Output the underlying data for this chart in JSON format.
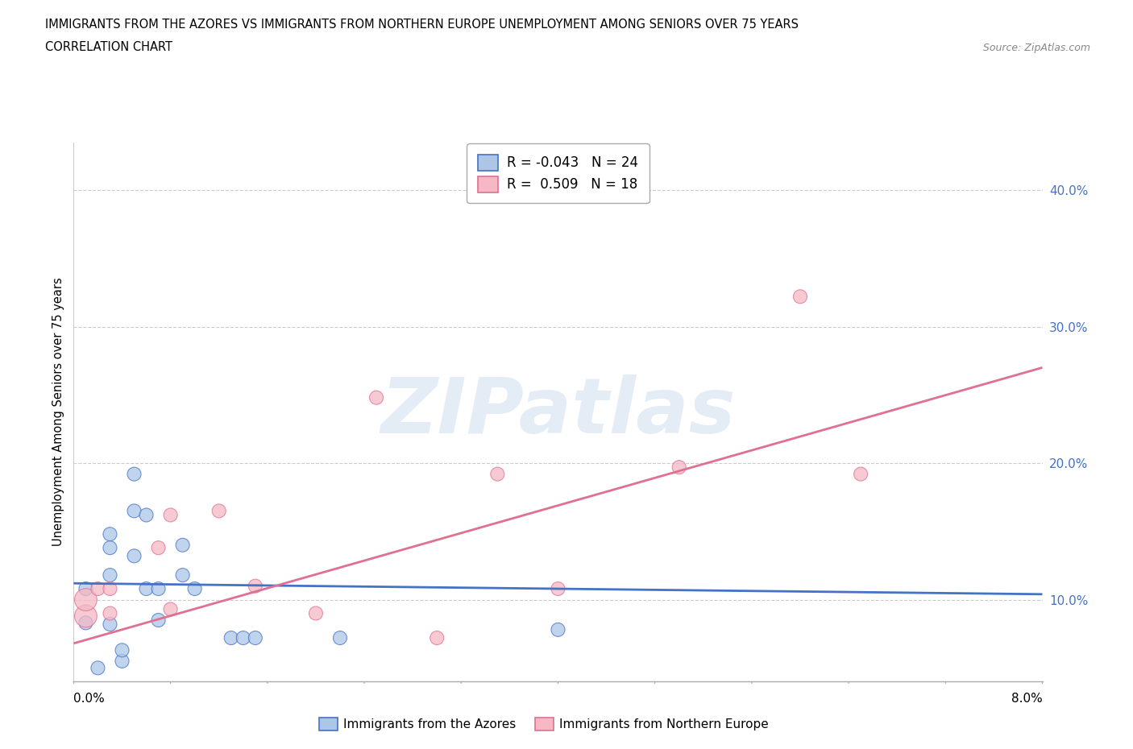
{
  "title_line1": "IMMIGRANTS FROM THE AZORES VS IMMIGRANTS FROM NORTHERN EUROPE UNEMPLOYMENT AMONG SENIORS OVER 75 YEARS",
  "title_line2": "CORRELATION CHART",
  "source": "Source: ZipAtlas.com",
  "ylabel": "Unemployment Among Seniors over 75 years",
  "y_ticks": [
    0.1,
    0.2,
    0.3,
    0.4
  ],
  "y_tick_labels": [
    "10.0%",
    "20.0%",
    "30.0%",
    "40.0%"
  ],
  "x_lim": [
    0.0,
    0.08
  ],
  "y_lim": [
    0.04,
    0.435
  ],
  "legend_r1": "R = -0.043",
  "legend_n1": "N = 24",
  "legend_r2": "R =  0.509",
  "legend_n2": "N = 18",
  "color_blue_fill": "#adc6e8",
  "color_blue_edge": "#4472c4",
  "color_pink_fill": "#f5b8c4",
  "color_pink_edge": "#e07090",
  "watermark_text": "ZIPatlas",
  "blue_points_x": [
    0.001,
    0.001,
    0.002,
    0.003,
    0.003,
    0.003,
    0.003,
    0.004,
    0.004,
    0.005,
    0.005,
    0.005,
    0.006,
    0.006,
    0.007,
    0.007,
    0.009,
    0.009,
    0.01,
    0.013,
    0.014,
    0.015,
    0.022,
    0.04
  ],
  "blue_points_y": [
    0.083,
    0.108,
    0.05,
    0.082,
    0.148,
    0.118,
    0.138,
    0.055,
    0.063,
    0.192,
    0.165,
    0.132,
    0.108,
    0.162,
    0.108,
    0.085,
    0.118,
    0.14,
    0.108,
    0.072,
    0.072,
    0.072,
    0.072,
    0.078
  ],
  "blue_points_size": [
    150,
    150,
    150,
    150,
    150,
    150,
    150,
    150,
    150,
    150,
    150,
    150,
    150,
    150,
    150,
    150,
    150,
    150,
    150,
    150,
    150,
    150,
    150,
    150
  ],
  "pink_points_x": [
    0.001,
    0.001,
    0.002,
    0.003,
    0.003,
    0.007,
    0.008,
    0.008,
    0.012,
    0.015,
    0.02,
    0.025,
    0.03,
    0.035,
    0.04,
    0.05,
    0.06,
    0.065
  ],
  "pink_points_y": [
    0.088,
    0.1,
    0.108,
    0.09,
    0.108,
    0.138,
    0.162,
    0.093,
    0.165,
    0.11,
    0.09,
    0.248,
    0.072,
    0.192,
    0.108,
    0.197,
    0.322,
    0.192
  ],
  "pink_points_size": [
    400,
    400,
    150,
    150,
    150,
    150,
    150,
    150,
    150,
    150,
    150,
    150,
    150,
    150,
    150,
    150,
    150,
    150
  ],
  "blue_trend_x": [
    0.0,
    0.08
  ],
  "blue_trend_y": [
    0.112,
    0.104
  ],
  "pink_trend_x": [
    0.0,
    0.08
  ],
  "pink_trend_y": [
    0.068,
    0.27
  ]
}
